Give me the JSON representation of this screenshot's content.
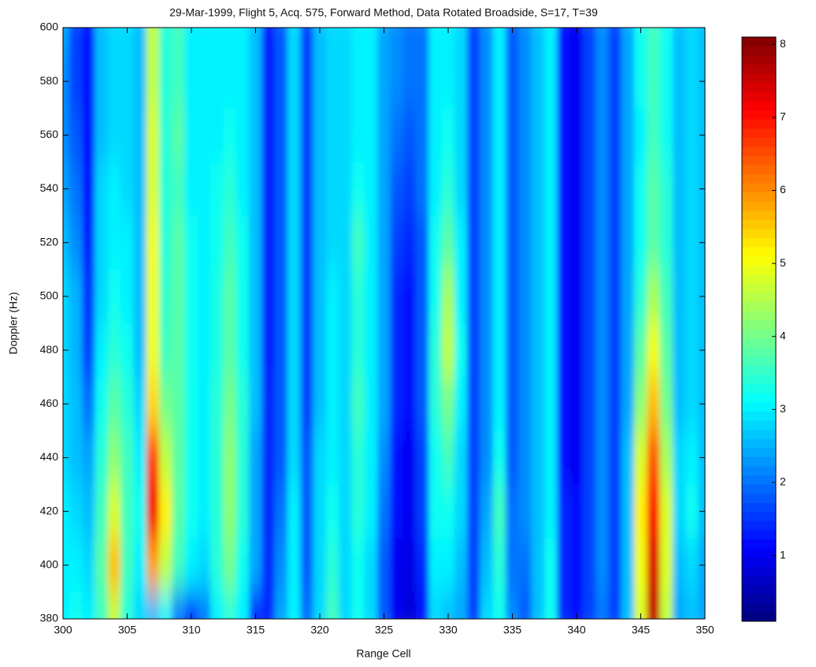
{
  "chart_data": {
    "type": "heatmap",
    "title": "29-Mar-1999, Flight 5, Acq. 575, Forward Method, Data Rotated Broadside, S=17, T=39",
    "x_label": "Range Cell",
    "y_label": "Doppler (Hz)",
    "colormap": "jet",
    "x": [
      300,
      301,
      302,
      303,
      304,
      305,
      306,
      307,
      308,
      309,
      310,
      311,
      312,
      313,
      314,
      315,
      316,
      317,
      318,
      319,
      320,
      321,
      322,
      323,
      324,
      325,
      326,
      327,
      328,
      329,
      330,
      331,
      332,
      333,
      334,
      335,
      336,
      337,
      338,
      339,
      340,
      341,
      342,
      343,
      344,
      345,
      346,
      347,
      348,
      349,
      350
    ],
    "y": [
      380,
      400,
      420,
      440,
      460,
      480,
      500,
      520,
      540,
      560,
      580,
      600
    ],
    "z": [
      [
        3.0,
        3.2,
        3.0,
        3.6,
        4.6,
        3.4,
        2.8,
        2.6,
        3.0,
        2.0,
        1.2,
        2.0,
        3.0,
        3.4,
        3.0,
        1.2,
        1.4,
        2.4,
        3.0,
        2.0,
        2.8,
        3.6,
        2.8,
        3.2,
        2.8,
        1.8,
        1.0,
        0.8,
        1.2,
        2.8,
        2.6,
        2.4,
        1.6,
        2.8,
        3.2,
        2.2,
        1.8,
        2.6,
        3.2,
        1.4,
        1.2,
        1.6,
        2.0,
        1.6,
        2.6,
        4.8,
        7.6,
        4.6,
        2.4,
        2.6,
        2.4
      ],
      [
        3.0,
        3.0,
        2.8,
        3.8,
        5.6,
        3.6,
        3.0,
        5.8,
        4.6,
        3.6,
        3.0,
        2.8,
        3.4,
        4.0,
        3.2,
        2.4,
        1.4,
        2.2,
        3.0,
        1.8,
        2.8,
        3.4,
        2.8,
        3.2,
        2.8,
        1.8,
        1.0,
        0.9,
        1.4,
        3.0,
        3.0,
        2.6,
        1.6,
        2.6,
        3.4,
        2.0,
        2.0,
        2.6,
        3.2,
        1.4,
        1.2,
        1.6,
        2.2,
        1.6,
        2.6,
        5.0,
        7.4,
        4.8,
        2.6,
        2.8,
        2.4
      ],
      [
        3.0,
        2.8,
        2.6,
        3.6,
        4.8,
        3.6,
        3.2,
        7.2,
        5.2,
        3.8,
        3.2,
        3.0,
        3.4,
        4.2,
        3.4,
        2.4,
        1.4,
        2.0,
        3.0,
        1.8,
        2.8,
        3.2,
        2.8,
        3.4,
        3.0,
        2.0,
        1.2,
        1.0,
        1.6,
        3.2,
        3.2,
        2.8,
        1.6,
        2.4,
        3.6,
        2.0,
        2.2,
        2.6,
        3.0,
        1.4,
        1.2,
        1.6,
        2.2,
        1.6,
        2.6,
        5.2,
        7.0,
        4.8,
        2.8,
        3.2,
        2.6
      ],
      [
        2.8,
        2.6,
        2.4,
        3.4,
        4.2,
        3.6,
        3.0,
        6.6,
        4.6,
        3.8,
        3.2,
        3.0,
        3.4,
        4.2,
        3.4,
        2.4,
        1.4,
        1.8,
        2.8,
        1.8,
        2.8,
        3.0,
        2.8,
        3.4,
        3.0,
        2.2,
        1.2,
        1.0,
        1.6,
        3.2,
        3.6,
        2.8,
        1.6,
        2.2,
        3.2,
        1.8,
        2.2,
        2.6,
        3.0,
        1.2,
        1.0,
        1.6,
        2.2,
        1.6,
        2.6,
        4.8,
        6.4,
        4.4,
        2.8,
        3.0,
        2.6
      ],
      [
        2.8,
        2.6,
        2.0,
        3.2,
        3.8,
        3.4,
        2.8,
        5.4,
        4.0,
        3.8,
        3.2,
        3.0,
        3.4,
        4.0,
        3.4,
        2.6,
        1.4,
        1.8,
        2.8,
        1.6,
        2.6,
        3.0,
        2.8,
        3.6,
        3.0,
        2.4,
        1.4,
        1.2,
        1.8,
        3.4,
        4.0,
        3.0,
        1.6,
        2.2,
        3.0,
        1.8,
        2.2,
        2.6,
        3.0,
        1.2,
        1.0,
        1.6,
        2.2,
        1.6,
        2.4,
        4.2,
        5.6,
        4.0,
        2.6,
        2.8,
        2.6
      ],
      [
        2.8,
        2.5,
        1.6,
        3.0,
        3.4,
        3.2,
        2.6,
        5.0,
        3.6,
        3.8,
        3.2,
        3.0,
        3.3,
        3.8,
        3.2,
        2.6,
        1.3,
        1.8,
        2.8,
        1.6,
        2.6,
        3.0,
        2.8,
        3.4,
        3.0,
        2.4,
        1.4,
        1.2,
        1.8,
        3.4,
        4.6,
        3.2,
        1.6,
        2.2,
        3.0,
        1.8,
        2.2,
        2.6,
        3.0,
        1.2,
        1.0,
        1.6,
        2.2,
        1.6,
        2.4,
        3.8,
        5.0,
        3.8,
        2.6,
        2.8,
        2.6
      ],
      [
        2.8,
        2.5,
        1.5,
        2.8,
        3.2,
        3.0,
        2.6,
        5.0,
        3.5,
        3.8,
        3.2,
        3.0,
        3.3,
        3.8,
        3.2,
        2.6,
        1.3,
        1.8,
        2.8,
        1.6,
        2.6,
        3.0,
        2.8,
        3.4,
        3.0,
        2.4,
        1.4,
        1.2,
        1.8,
        3.2,
        4.4,
        3.0,
        1.6,
        2.2,
        3.0,
        1.8,
        2.2,
        2.6,
        3.0,
        1.2,
        1.0,
        1.6,
        2.2,
        1.6,
        2.4,
        3.4,
        4.4,
        3.6,
        2.6,
        2.8,
        2.6
      ],
      [
        2.6,
        2.2,
        1.3,
        2.8,
        3.0,
        3.0,
        2.6,
        5.0,
        3.4,
        3.8,
        3.2,
        3.0,
        3.2,
        3.6,
        3.2,
        2.6,
        1.3,
        1.8,
        2.8,
        1.6,
        2.6,
        2.8,
        2.8,
        3.6,
        3.0,
        2.4,
        1.6,
        1.4,
        1.8,
        3.2,
        3.8,
        3.0,
        1.6,
        2.2,
        3.0,
        1.8,
        2.2,
        2.6,
        3.0,
        1.2,
        1.0,
        1.6,
        2.2,
        1.6,
        2.4,
        3.2,
        3.8,
        3.4,
        2.6,
        2.8,
        2.6
      ],
      [
        2.4,
        2.0,
        1.2,
        2.8,
        3.0,
        2.8,
        2.6,
        4.8,
        3.4,
        3.6,
        3.0,
        3.0,
        3.2,
        3.4,
        3.0,
        2.6,
        1.3,
        1.8,
        2.8,
        1.6,
        2.6,
        2.8,
        2.8,
        3.2,
        3.0,
        2.4,
        1.8,
        1.6,
        2.0,
        3.0,
        3.4,
        2.8,
        1.6,
        2.2,
        3.0,
        1.8,
        2.2,
        2.6,
        3.0,
        1.2,
        1.0,
        1.6,
        2.2,
        1.6,
        2.4,
        3.2,
        3.8,
        3.4,
        2.6,
        2.8,
        2.6
      ],
      [
        2.2,
        1.8,
        1.2,
        2.6,
        2.8,
        2.8,
        2.6,
        4.8,
        3.4,
        3.8,
        3.0,
        3.0,
        3.0,
        3.2,
        3.0,
        2.6,
        1.3,
        1.8,
        2.8,
        1.6,
        2.6,
        2.8,
        2.8,
        3.0,
        3.0,
        2.4,
        2.0,
        1.8,
        2.0,
        3.0,
        3.2,
        2.8,
        1.6,
        2.2,
        3.0,
        1.8,
        2.2,
        2.6,
        3.0,
        1.2,
        1.0,
        1.6,
        2.2,
        1.6,
        2.4,
        3.0,
        3.6,
        3.2,
        2.6,
        2.8,
        2.6
      ],
      [
        2.2,
        1.6,
        1.2,
        2.6,
        2.8,
        2.8,
        2.6,
        4.6,
        3.4,
        3.6,
        3.0,
        3.0,
        3.0,
        3.0,
        3.0,
        2.6,
        1.3,
        1.8,
        2.8,
        1.6,
        2.6,
        2.8,
        2.8,
        3.0,
        3.0,
        2.4,
        2.2,
        2.0,
        2.0,
        3.0,
        3.0,
        2.8,
        1.6,
        2.2,
        3.0,
        1.8,
        2.2,
        2.6,
        3.0,
        1.2,
        1.0,
        1.6,
        2.2,
        1.6,
        2.4,
        3.2,
        3.6,
        3.2,
        2.6,
        2.8,
        2.6
      ],
      [
        2.4,
        1.6,
        1.2,
        2.6,
        2.8,
        2.8,
        2.6,
        4.6,
        3.4,
        3.6,
        3.0,
        3.0,
        3.0,
        3.0,
        3.0,
        2.6,
        1.3,
        1.8,
        2.8,
        1.6,
        2.6,
        2.8,
        2.8,
        3.0,
        3.0,
        2.4,
        2.2,
        2.0,
        2.0,
        3.0,
        3.0,
        2.8,
        1.6,
        2.2,
        3.0,
        1.8,
        2.2,
        2.6,
        3.0,
        1.2,
        1.0,
        1.6,
        2.2,
        1.6,
        2.4,
        3.2,
        3.6,
        3.2,
        2.6,
        2.8,
        2.6
      ]
    ],
    "xlim": [
      300,
      350
    ],
    "xticks": [
      300,
      305,
      310,
      315,
      320,
      325,
      330,
      335,
      340,
      345,
      350
    ],
    "ylim": [
      380,
      600
    ],
    "yticks": [
      380,
      400,
      420,
      440,
      460,
      480,
      500,
      520,
      540,
      560,
      580,
      600
    ],
    "clim": [
      0.1,
      8.1
    ],
    "cticks": [
      1,
      2,
      3,
      4,
      5,
      6,
      7,
      8
    ]
  }
}
